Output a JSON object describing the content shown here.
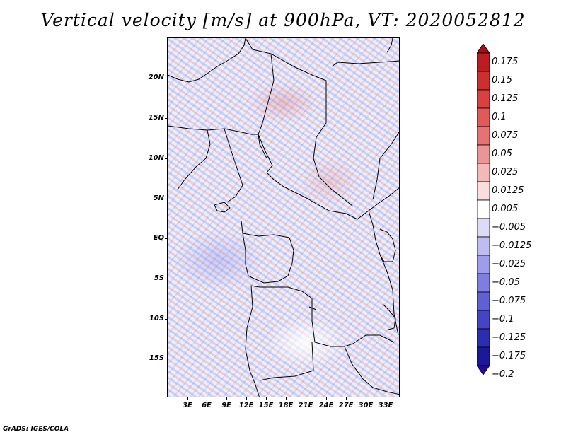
{
  "title": "Vertical velocity [m/s] at 900hPa, VT: 2020052812",
  "credit": "GrADS: IGES/COLA",
  "lat_labels": [
    "20N",
    "15N",
    "10N",
    "5N",
    "EQ",
    "5S",
    "10S",
    "15S"
  ],
  "lon_labels": [
    "3E",
    "6E",
    "9E",
    "12E",
    "15E",
    "18E",
    "21E",
    "24E",
    "27E",
    "30E",
    "33E"
  ],
  "colorbar": {
    "labels": [
      "0.175",
      "0.15",
      "0.125",
      "0.1",
      "0.075",
      "0.05",
      "0.025",
      "0.0125",
      "0.005",
      "−0.005",
      "−0.0125",
      "−0.025",
      "−0.05",
      "−0.075",
      "−0.1",
      "−0.125",
      "−0.175",
      "−0.2"
    ],
    "colors": [
      "#a50f15",
      "#bb1e22",
      "#cc2f2f",
      "#d94141",
      "#e05a5a",
      "#e57373",
      "#ec9595",
      "#f3b8b8",
      "#fadede",
      "#ffffff",
      "#dcdcf8",
      "#bdbdf2",
      "#9d9dea",
      "#7e7ee0",
      "#6060d4",
      "#4444c4",
      "#2d2db0",
      "#1a1a99",
      "#2a0a8c"
    ]
  }
}
